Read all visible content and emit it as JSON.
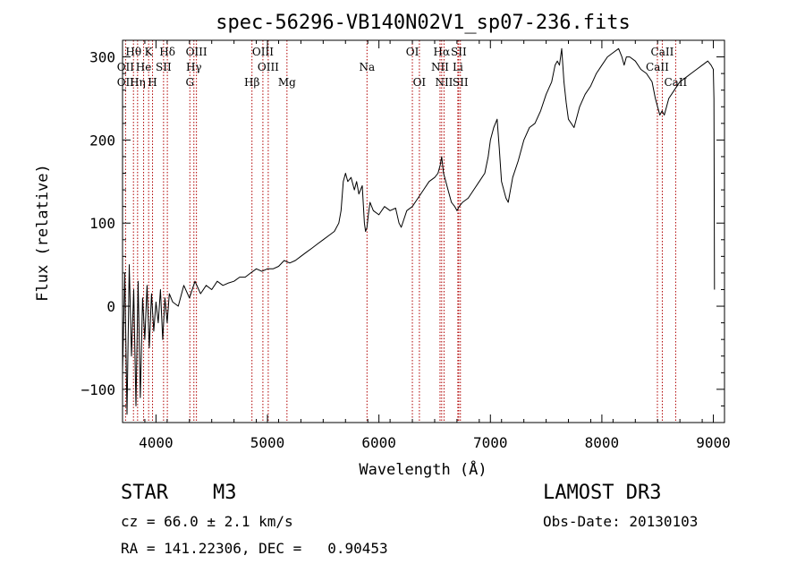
{
  "chart_data": {
    "type": "line",
    "title": "spec-56296-VB140N02V1_sp07-236.fits",
    "xlabel": "Wavelength (Å)",
    "ylabel": "Flux (relative)",
    "xlim": [
      3700,
      9100
    ],
    "ylim": [
      -140,
      320
    ],
    "xticks": [
      4000,
      5000,
      6000,
      7000,
      8000,
      9000
    ],
    "yticks": [
      -100,
      0,
      100,
      200,
      300
    ],
    "xtick_labels": [
      "4000",
      "5000",
      "6000",
      "7000",
      "8000",
      "9000"
    ],
    "ytick_labels": [
      "−100",
      "0",
      "100",
      "200",
      "300"
    ],
    "series": [
      {
        "name": "flux",
        "color": "#000000",
        "x": [
          3700,
          3720,
          3740,
          3760,
          3780,
          3800,
          3820,
          3840,
          3860,
          3880,
          3900,
          3920,
          3940,
          3960,
          3980,
          4000,
          4020,
          4040,
          4060,
          4080,
          4100,
          4120,
          4150,
          4200,
          4250,
          4300,
          4350,
          4400,
          4450,
          4500,
          4550,
          4600,
          4650,
          4700,
          4750,
          4800,
          4850,
          4900,
          4950,
          5000,
          5050,
          5100,
          5150,
          5200,
          5250,
          5300,
          5350,
          5400,
          5450,
          5500,
          5550,
          5600,
          5640,
          5660,
          5680,
          5700,
          5720,
          5750,
          5780,
          5800,
          5820,
          5850,
          5870,
          5880,
          5893,
          5905,
          5920,
          5950,
          6000,
          6050,
          6100,
          6150,
          6180,
          6200,
          6250,
          6300,
          6350,
          6400,
          6450,
          6500,
          6530,
          6550,
          6563,
          6580,
          6600,
          6620,
          6650,
          6680,
          6700,
          6720,
          6750,
          6800,
          6850,
          6900,
          6950,
          6980,
          7000,
          7030,
          7060,
          7080,
          7100,
          7120,
          7140,
          7160,
          7200,
          7250,
          7300,
          7350,
          7400,
          7450,
          7500,
          7550,
          7580,
          7600,
          7620,
          7640,
          7660,
          7680,
          7700,
          7750,
          7800,
          7850,
          7900,
          7950,
          8000,
          8050,
          8100,
          8150,
          8180,
          8200,
          8220,
          8250,
          8300,
          8350,
          8400,
          8450,
          8480,
          8500,
          8520,
          8540,
          8560,
          8580,
          8600,
          8650,
          8700,
          8750,
          8800,
          8850,
          8900,
          8950,
          8980,
          9000,
          9005,
          9010
        ],
        "y": [
          -80,
          40,
          -130,
          50,
          -60,
          20,
          -120,
          30,
          -110,
          10,
          -40,
          25,
          -50,
          15,
          -30,
          5,
          -20,
          20,
          -40,
          10,
          -20,
          15,
          5,
          0,
          25,
          10,
          30,
          15,
          25,
          20,
          30,
          25,
          28,
          30,
          35,
          35,
          40,
          45,
          42,
          45,
          45,
          48,
          55,
          52,
          55,
          60,
          65,
          70,
          75,
          80,
          85,
          90,
          100,
          115,
          150,
          160,
          150,
          155,
          140,
          150,
          135,
          145,
          100,
          90,
          95,
          110,
          125,
          115,
          110,
          120,
          115,
          118,
          100,
          95,
          115,
          120,
          130,
          140,
          150,
          155,
          160,
          170,
          180,
          160,
          150,
          140,
          125,
          120,
          115,
          120,
          125,
          130,
          140,
          150,
          160,
          180,
          200,
          215,
          225,
          190,
          150,
          140,
          130,
          125,
          155,
          175,
          200,
          215,
          220,
          235,
          255,
          270,
          290,
          295,
          290,
          310,
          270,
          245,
          225,
          215,
          240,
          255,
          265,
          280,
          290,
          300,
          305,
          310,
          300,
          290,
          300,
          300,
          295,
          285,
          280,
          270,
          250,
          240,
          230,
          235,
          230,
          240,
          250,
          260,
          270,
          275,
          280,
          285,
          290,
          295,
          290,
          285,
          250,
          20
        ]
      }
    ],
    "emission_lines": [
      {
        "label": "Hθ",
        "x": 3798,
        "row": 0
      },
      {
        "label": "K",
        "x": 3934,
        "row": 0
      },
      {
        "label": "Hδ",
        "x": 4102,
        "row": 0
      },
      {
        "label": "OIII",
        "x": 4363,
        "row": 0
      },
      {
        "label": "OIII",
        "x": 4959,
        "row": 0
      },
      {
        "label": "OI",
        "x": 6300,
        "row": 0
      },
      {
        "label": "Hα",
        "x": 6563,
        "row": 0
      },
      {
        "label": "SII",
        "x": 6716,
        "row": 0
      },
      {
        "label": "CaII",
        "x": 8542,
        "row": 0
      },
      {
        "label": "OII",
        "x": 3727,
        "row": 1
      },
      {
        "label": "He",
        "x": 3889,
        "row": 1
      },
      {
        "label": "SII",
        "x": 4068,
        "row": 1
      },
      {
        "label": "Hγ",
        "x": 4340,
        "row": 1
      },
      {
        "label": "OIII",
        "x": 5007,
        "row": 1
      },
      {
        "label": "Na",
        "x": 5893,
        "row": 1
      },
      {
        "label": "NII",
        "x": 6548,
        "row": 1
      },
      {
        "label": "Li",
        "x": 6708,
        "row": 1
      },
      {
        "label": "CaII",
        "x": 8498,
        "row": 1
      },
      {
        "label": "OII",
        "x": 3727,
        "row": 2
      },
      {
        "label": "Hη",
        "x": 3835,
        "row": 2
      },
      {
        "label": "H",
        "x": 3969,
        "row": 2
      },
      {
        "label": "G",
        "x": 4304,
        "row": 2
      },
      {
        "label": "Hβ",
        "x": 4861,
        "row": 2
      },
      {
        "label": "Mg",
        "x": 5175,
        "row": 2
      },
      {
        "label": "OI",
        "x": 6363,
        "row": 2
      },
      {
        "label": "NII",
        "x": 6584,
        "row": 2
      },
      {
        "label": "SII",
        "x": 6731,
        "row": 2
      },
      {
        "label": "CaII",
        "x": 8662,
        "row": 2
      }
    ],
    "line_positions": [
      3727,
      3798,
      3835,
      3889,
      3934,
      3969,
      4068,
      4102,
      4304,
      4340,
      4363,
      4861,
      4959,
      5007,
      5175,
      5893,
      6300,
      6363,
      6548,
      6563,
      6584,
      6708,
      6716,
      6731,
      8498,
      8542,
      8662
    ]
  },
  "info": {
    "object_type": "STAR",
    "subclass": "M3",
    "survey": "LAMOST DR3",
    "cz": "cz = 66.0 ± 2.1 km/s",
    "obs_date": "Obs-Date: 20130103",
    "coords": "RA = 141.22306, DEC =   0.90453"
  }
}
